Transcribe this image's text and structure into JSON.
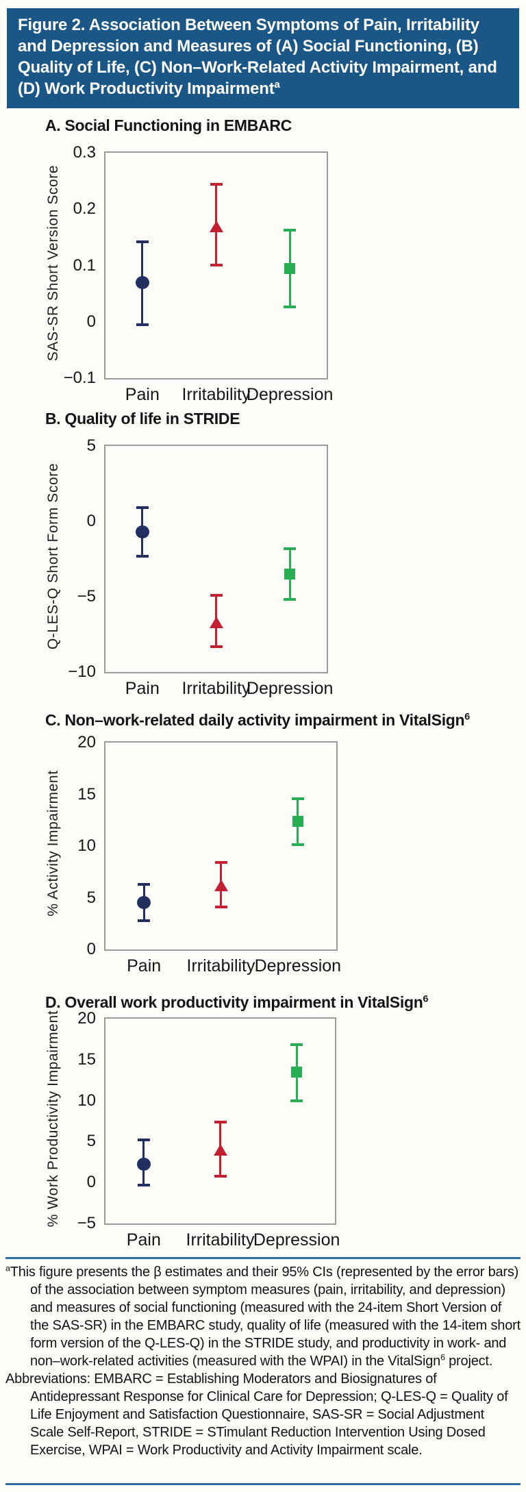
{
  "header": {
    "title": "Figure 2. Association Between Symptoms of Pain, Irritability and Depression and Measures of (A) Social Functioning, (B) Quality of Life, (C) Non–Work-Related Activity Impairment, and (D) Work Productivity Impairment",
    "title_sup": "a"
  },
  "colors": {
    "banner_bg": "#1a5686",
    "banner_text": "#ffffff",
    "rule_blue": "#2e6da3",
    "frame_gray": "#9b9b9b",
    "pain_navy": "#232e61",
    "irritability_red": "#c32032",
    "depression_green": "#27ae52"
  },
  "chart_data": [
    {
      "type": "scatter",
      "title": "A. Social Functioning in EMBARC",
      "title_sup": "",
      "ylabel": "SAS-SR Short Version Score",
      "xlabel": "",
      "ylim": [
        -0.1,
        0.3
      ],
      "grid": false,
      "legend": false,
      "categories": [
        "Pain",
        "Irritability",
        "Depression"
      ],
      "yticks": [
        {
          "v": 0.3,
          "label": "0.3"
        },
        {
          "v": 0.2,
          "label": "0.2"
        },
        {
          "v": 0.1,
          "label": "0.1"
        },
        {
          "v": 0,
          "label": "0"
        },
        {
          "v": -0.1,
          "label": "−0.1"
        }
      ],
      "series": [
        {
          "name": "Pain",
          "marker": "circle",
          "color": "#232e61",
          "value": 0.07,
          "ci95": [
            -0.005,
            0.142
          ]
        },
        {
          "name": "Irritability",
          "marker": "triangle",
          "color": "#c32032",
          "value": 0.17,
          "ci95": [
            0.101,
            0.244
          ]
        },
        {
          "name": "Depression",
          "marker": "square",
          "color": "#27ae52",
          "value": 0.094,
          "ci95": [
            0.027,
            0.163
          ]
        }
      ]
    },
    {
      "type": "scatter",
      "title": "B. Quality of life in STRIDE",
      "title_sup": "",
      "ylabel": "Q-LES-Q Short Form Score",
      "xlabel": "",
      "ylim": [
        -10,
        5
      ],
      "grid": false,
      "legend": false,
      "categories": [
        "Pain",
        "Irritability",
        "Depression"
      ],
      "yticks": [
        {
          "v": 5,
          "label": "5"
        },
        {
          "v": 0,
          "label": "0"
        },
        {
          "v": -5,
          "label": "−5"
        },
        {
          "v": -10,
          "label": "−10"
        }
      ],
      "series": [
        {
          "name": "Pain",
          "marker": "circle",
          "color": "#232e61",
          "value": -0.7,
          "ci95": [
            -2.3,
            0.9
          ]
        },
        {
          "name": "Irritability",
          "marker": "triangle",
          "color": "#c32032",
          "value": -6.7,
          "ci95": [
            -8.3,
            -4.9
          ]
        },
        {
          "name": "Depression",
          "marker": "square",
          "color": "#27ae52",
          "value": -3.5,
          "ci95": [
            -5.2,
            -1.8
          ]
        }
      ]
    },
    {
      "type": "scatter",
      "title": "C. Non–work-related daily activity impairment in VitalSign",
      "title_sup": "6",
      "ylabel": "% Activity Impairment",
      "xlabel": "",
      "ylim": [
        0,
        20
      ],
      "grid": false,
      "legend": false,
      "categories": [
        "Pain",
        "Irritability",
        "Depression"
      ],
      "yticks": [
        {
          "v": 20,
          "label": "20"
        },
        {
          "v": 15,
          "label": "15"
        },
        {
          "v": 10,
          "label": "10"
        },
        {
          "v": 5,
          "label": "5"
        },
        {
          "v": 0,
          "label": "0"
        }
      ],
      "series": [
        {
          "name": "Pain",
          "marker": "circle",
          "color": "#232e61",
          "value": 4.6,
          "ci95": [
            2.8,
            6.3
          ]
        },
        {
          "name": "Irritability",
          "marker": "triangle",
          "color": "#c32032",
          "value": 6.2,
          "ci95": [
            4.1,
            8.4
          ]
        },
        {
          "name": "Depression",
          "marker": "square",
          "color": "#27ae52",
          "value": 12.4,
          "ci95": [
            10.1,
            14.6
          ]
        }
      ]
    },
    {
      "type": "scatter",
      "title": "D. Overall work productivity impairment in VitalSign",
      "title_sup": "6",
      "ylabel": "% Work Productivity Impairment",
      "xlabel": "",
      "ylim": [
        -5,
        20
      ],
      "grid": false,
      "legend": false,
      "categories": [
        "Pain",
        "Irritability",
        "Depression"
      ],
      "yticks": [
        {
          "v": 20,
          "label": "20"
        },
        {
          "v": 15,
          "label": "15"
        },
        {
          "v": 10,
          "label": "10"
        },
        {
          "v": 5,
          "label": "5"
        },
        {
          "v": 0,
          "label": "0"
        },
        {
          "v": -5,
          "label": "−5"
        }
      ],
      "series": [
        {
          "name": "Pain",
          "marker": "circle",
          "color": "#232e61",
          "value": 2.3,
          "ci95": [
            -0.3,
            5.2
          ]
        },
        {
          "name": "Irritability",
          "marker": "triangle",
          "color": "#c32032",
          "value": 4.0,
          "ci95": [
            0.8,
            7.4
          ]
        },
        {
          "name": "Depression",
          "marker": "square",
          "color": "#27ae52",
          "value": 13.5,
          "ci95": [
            10.0,
            16.8
          ]
        }
      ]
    }
  ],
  "footnote": {
    "marker": "a",
    "text": "This figure presents the β estimates and their 95% CIs (represented by the error bars) of the association between symptom measures (pain, irritability, and depression) and measures of social functioning (measured with the 24-item Short Version of the SAS-SR) in the EMBARC study, quality of life (measured with the 14-item short form version of the Q-LES-Q) in the STRIDE study, and productivity in work- and non–work-related activities (measured with the WPAI) in the VitalSign",
    "text_sup": "6",
    "text_end": " project.",
    "abbreviations": "Abbreviations: EMBARC = Establishing Moderators and Biosignatures of Antidepressant Response for Clinical Care for Depression; Q-LES-Q = Quality of Life Enjoyment and Satisfaction Questionnaire, SAS-SR = Social Adjustment Scale Self-Report, STRIDE = STimulant Reduction Intervention Using Dosed Exercise, WPAI = Work Productivity and Activity Impairment scale."
  }
}
